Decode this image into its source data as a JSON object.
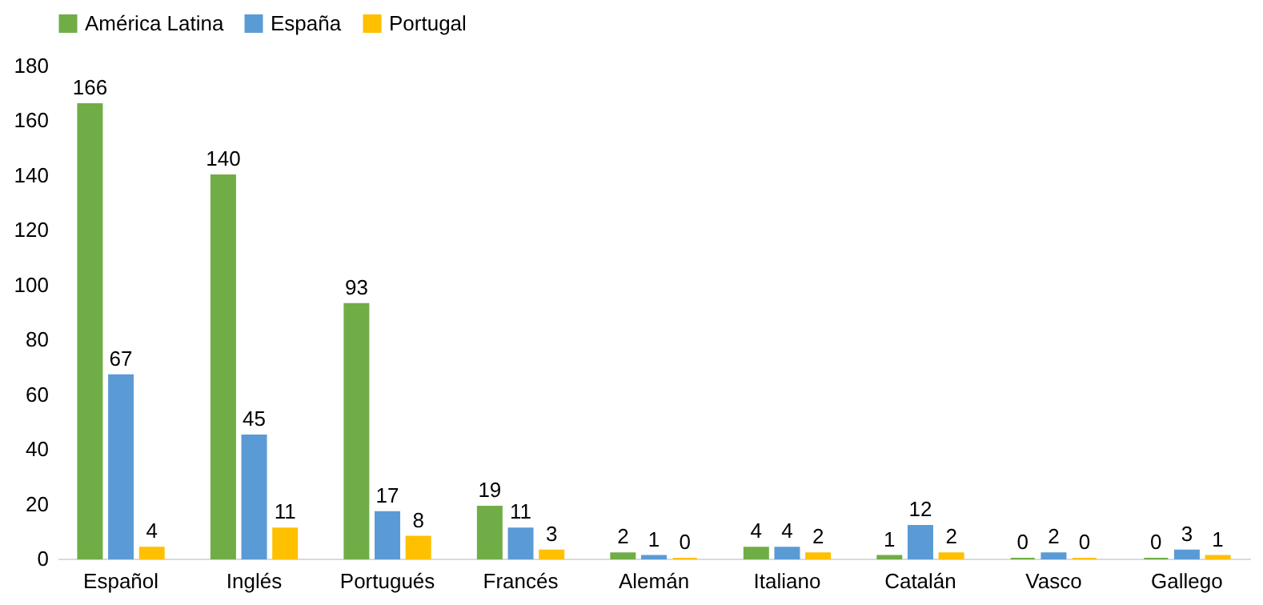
{
  "chart_data": {
    "type": "bar",
    "categories": [
      "Español",
      "Inglés",
      "Portugués",
      "Francés",
      "Alemán",
      "Italiano",
      "Catalán",
      "Vasco",
      "Gallego"
    ],
    "series": [
      {
        "name": "América Latina",
        "color": "#70ad47",
        "values": [
          166,
          140,
          93,
          19,
          2,
          4,
          1,
          0,
          0
        ]
      },
      {
        "name": "España",
        "color": "#5b9bd5",
        "values": [
          67,
          45,
          17,
          11,
          1,
          4,
          12,
          2,
          3
        ]
      },
      {
        "name": "Portugal",
        "color": "#ffc000",
        "values": [
          4,
          11,
          8,
          3,
          0,
          2,
          2,
          0,
          1
        ]
      }
    ],
    "ylim": [
      0,
      180
    ],
    "yticks": [
      0,
      20,
      40,
      60,
      80,
      100,
      120,
      140,
      160,
      180
    ],
    "data_labels": true,
    "grid": false,
    "legend": "top"
  }
}
